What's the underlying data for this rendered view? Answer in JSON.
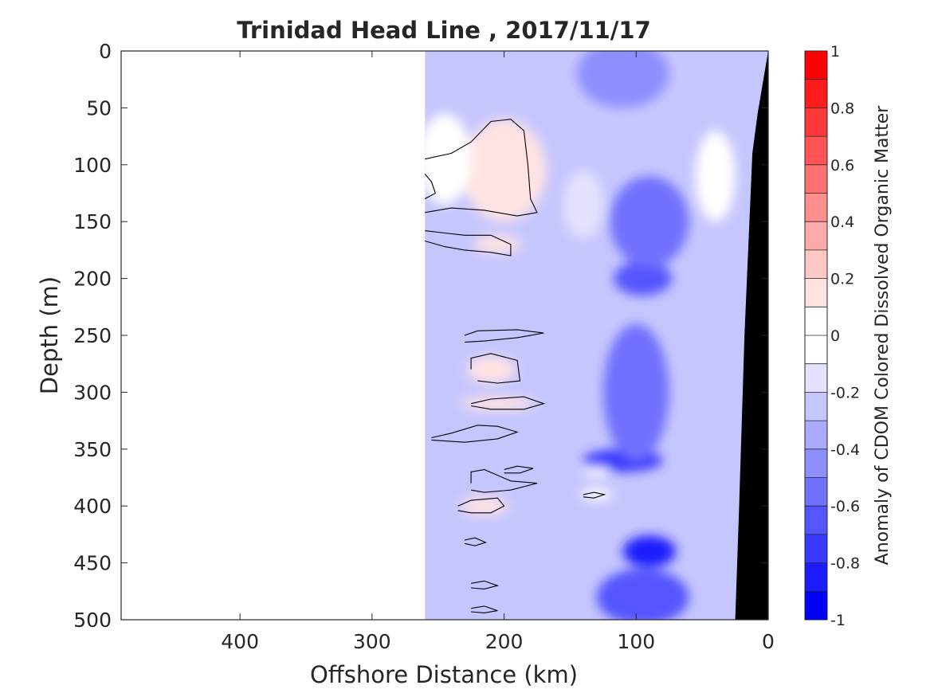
{
  "chart_data": {
    "type": "heatmap",
    "title": "Trinidad Head Line , 2017/11/17",
    "xlabel": "Offshore Distance (km)",
    "ylabel": "Depth (m)",
    "colorbar_label": "Anomaly of CDOM Colored Dissolved Organic Matter",
    "xlim": [
      490,
      0
    ],
    "x_reversed": true,
    "ylim": [
      0,
      500
    ],
    "y_reversed": true,
    "x_ticks": [
      400,
      300,
      200,
      100,
      0
    ],
    "y_ticks": [
      0,
      50,
      100,
      150,
      200,
      250,
      300,
      350,
      400,
      450,
      500
    ],
    "clim": [
      -1,
      1
    ],
    "colorbar_ticks": [
      1,
      0.8,
      0.6,
      0.4,
      0.2,
      0,
      -0.2,
      -0.4,
      -0.6,
      -0.8,
      -1
    ],
    "contour_levels": 20,
    "data_extent_km": [
      0,
      260
    ],
    "contour_line_level": 0,
    "colors": {
      "positive": "#ff0000",
      "negative": "#0000ff",
      "neutral": "#ffffff",
      "bathymetry": "#000000",
      "contour_line": "#000000"
    },
    "bathymetry": [
      [
        25,
        500
      ],
      [
        0,
        500
      ],
      [
        0,
        0
      ],
      [
        8,
        55
      ],
      [
        12,
        90
      ],
      [
        18,
        250
      ],
      [
        22,
        400
      ]
    ],
    "anomaly_blobs": [
      {
        "km": 200,
        "depth": 105,
        "rkm": 32,
        "rdepth": 45,
        "value": 0.15
      },
      {
        "km": 205,
        "depth": 170,
        "rkm": 18,
        "rdepth": 8,
        "value": 0.12
      },
      {
        "km": 210,
        "depth": 280,
        "rkm": 18,
        "rdepth": 12,
        "value": 0.14
      },
      {
        "km": 205,
        "depth": 310,
        "rkm": 28,
        "rdepth": 6,
        "value": 0.13
      },
      {
        "km": 215,
        "depth": 400,
        "rkm": 18,
        "rdepth": 8,
        "value": 0.14
      },
      {
        "km": 245,
        "depth": 95,
        "rkm": 20,
        "rdepth": 40,
        "value": 0.05
      },
      {
        "km": 95,
        "depth": 200,
        "rkm": 22,
        "rdepth": 15,
        "value": -0.65
      },
      {
        "km": 110,
        "depth": 360,
        "rkm": 30,
        "rdepth": 10,
        "value": -0.7
      },
      {
        "km": 90,
        "depth": 440,
        "rkm": 20,
        "rdepth": 14,
        "value": -0.8
      },
      {
        "km": 95,
        "depth": 480,
        "rkm": 35,
        "rdepth": 25,
        "value": -0.65
      },
      {
        "km": 110,
        "depth": 20,
        "rkm": 35,
        "rdepth": 30,
        "value": -0.45
      },
      {
        "km": 90,
        "depth": 150,
        "rkm": 30,
        "rdepth": 40,
        "value": -0.5
      },
      {
        "km": 100,
        "depth": 300,
        "rkm": 25,
        "rdepth": 60,
        "value": -0.55
      },
      {
        "km": 130,
        "depth": 390,
        "rkm": 12,
        "rdepth": 5,
        "value": 0.05
      },
      {
        "km": 130,
        "depth": 370,
        "rkm": 10,
        "rdepth": 4,
        "value": 0.05
      },
      {
        "km": 40,
        "depth": 110,
        "rkm": 15,
        "rdepth": 40,
        "value": -0.05
      },
      {
        "km": 140,
        "depth": 135,
        "rkm": 15,
        "rdepth": 30,
        "value": -0.1
      }
    ],
    "zero_contours": [
      [
        [
          260,
          95
        ],
        [
          240,
          90
        ],
        [
          225,
          80
        ],
        [
          210,
          62
        ],
        [
          195,
          60
        ],
        [
          185,
          70
        ],
        [
          182,
          100
        ],
        [
          180,
          130
        ],
        [
          175,
          142
        ],
        [
          190,
          145
        ],
        [
          215,
          140
        ],
        [
          240,
          138
        ],
        [
          260,
          142
        ]
      ],
      [
        [
          260,
          158
        ],
        [
          245,
          160
        ],
        [
          230,
          162
        ],
        [
          210,
          162
        ],
        [
          195,
          170
        ],
        [
          195,
          180
        ],
        [
          210,
          177
        ],
        [
          230,
          175
        ],
        [
          245,
          172
        ],
        [
          260,
          167
        ]
      ],
      [
        [
          260,
          108
        ],
        [
          255,
          115
        ],
        [
          252,
          125
        ],
        [
          260,
          130
        ]
      ],
      [
        [
          230,
          250
        ],
        [
          220,
          246
        ],
        [
          190,
          245
        ],
        [
          170,
          248
        ],
        [
          190,
          252
        ],
        [
          215,
          255
        ],
        [
          230,
          256
        ]
      ],
      [
        [
          225,
          280
        ],
        [
          225,
          270
        ],
        [
          210,
          266
        ],
        [
          190,
          272
        ],
        [
          188,
          290
        ],
        [
          205,
          292
        ],
        [
          220,
          290
        ]
      ],
      [
        [
          225,
          310
        ],
        [
          210,
          306
        ],
        [
          185,
          304
        ],
        [
          170,
          310
        ],
        [
          185,
          315
        ],
        [
          210,
          315
        ],
        [
          225,
          312
        ]
      ],
      [
        [
          255,
          340
        ],
        [
          240,
          336
        ],
        [
          220,
          329
        ],
        [
          205,
          330
        ],
        [
          190,
          335
        ],
        [
          205,
          341
        ],
        [
          230,
          344
        ],
        [
          255,
          342
        ]
      ],
      [
        [
          225,
          380
        ],
        [
          225,
          370
        ],
        [
          215,
          368
        ],
        [
          195,
          378
        ],
        [
          175,
          380
        ],
        [
          195,
          386
        ],
        [
          215,
          388
        ],
        [
          225,
          386
        ]
      ],
      [
        [
          235,
          400
        ],
        [
          225,
          395
        ],
        [
          205,
          393
        ],
        [
          200,
          400
        ],
        [
          210,
          406
        ],
        [
          225,
          406
        ],
        [
          235,
          404
        ]
      ],
      [
        [
          200,
          368
        ],
        [
          190,
          365
        ],
        [
          178,
          367
        ],
        [
          188,
          371
        ],
        [
          200,
          371
        ]
      ],
      [
        [
          140,
          390
        ],
        [
          132,
          388
        ],
        [
          124,
          390
        ],
        [
          132,
          393
        ],
        [
          140,
          392
        ]
      ],
      [
        [
          230,
          430
        ],
        [
          222,
          428
        ],
        [
          214,
          432
        ],
        [
          222,
          435
        ],
        [
          230,
          433
        ]
      ],
      [
        [
          225,
          490
        ],
        [
          215,
          488
        ],
        [
          205,
          492
        ],
        [
          215,
          494
        ],
        [
          225,
          493
        ]
      ],
      [
        [
          225,
          468
        ],
        [
          215,
          466
        ],
        [
          205,
          470
        ],
        [
          215,
          473
        ],
        [
          225,
          472
        ]
      ]
    ]
  }
}
